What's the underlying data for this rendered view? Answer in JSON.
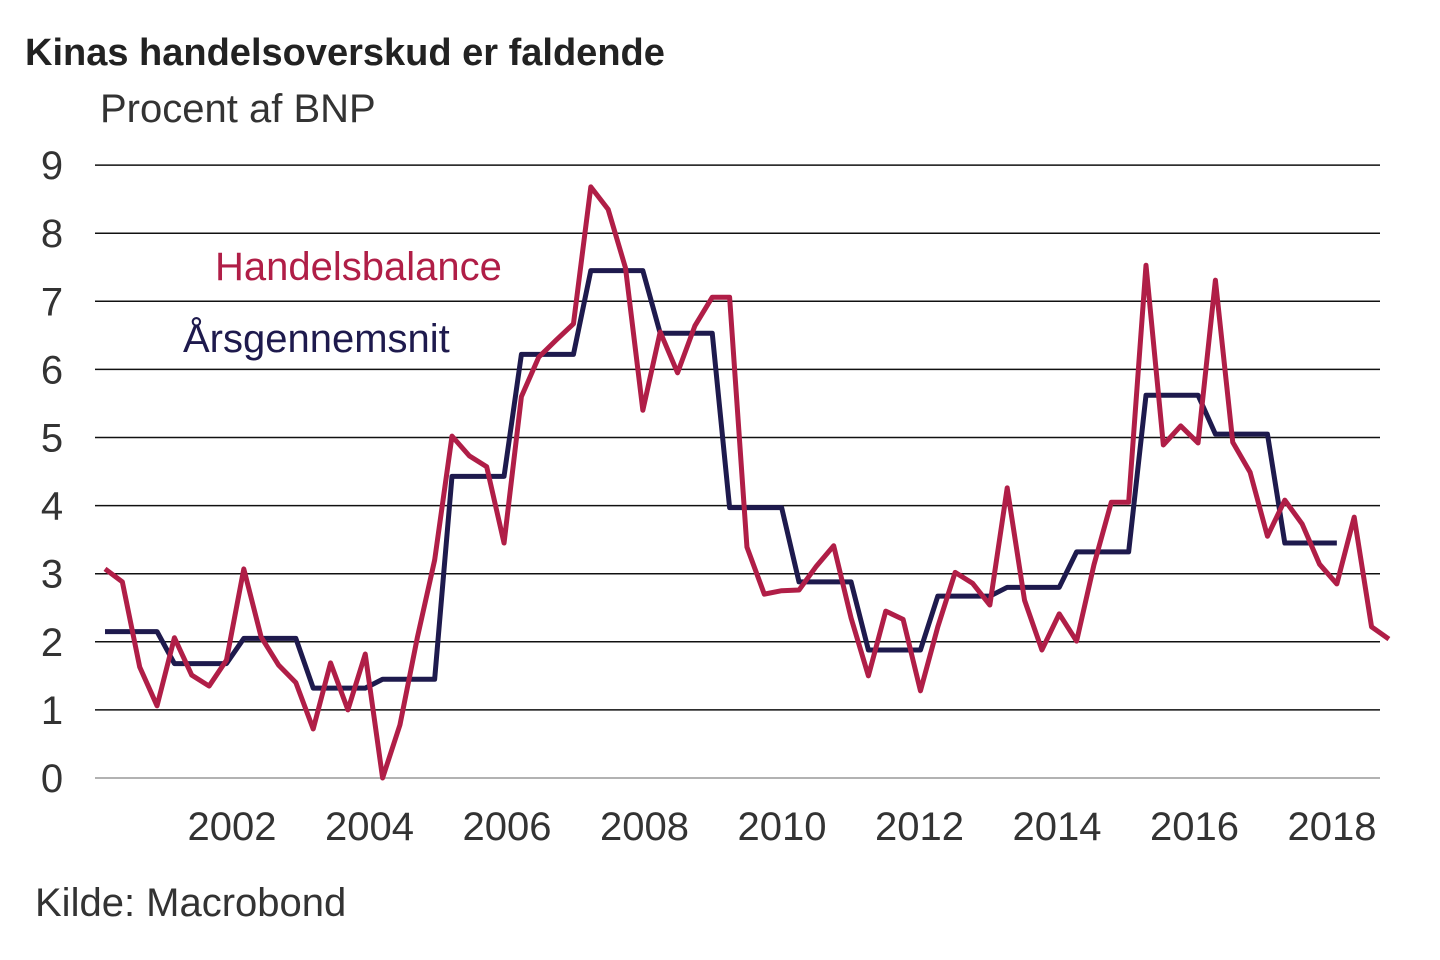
{
  "chart_data": {
    "type": "line",
    "title": "Kinas handelsoverskud er faldende",
    "ylabel": "Procent af BNP",
    "source": "Kilde: Macrobond",
    "ylim": [
      0,
      9
    ],
    "yticks": [
      "0",
      "1",
      "2",
      "3",
      "4",
      "5",
      "6",
      "7",
      "8",
      "9"
    ],
    "xticks": [
      "2002",
      "2004",
      "2006",
      "2008",
      "2010",
      "2012",
      "2014",
      "2016",
      "2018"
    ],
    "xtick_years": [
      2002,
      2004,
      2006,
      2008,
      2010,
      2012,
      2014,
      2016,
      2018
    ],
    "grid": true,
    "x_start": "2000Q1",
    "frequency": "quarterly",
    "series": [
      {
        "name": "Handelsbalance",
        "color": "#b01e47",
        "values": [
          3.07,
          2.88,
          1.63,
          1.06,
          2.06,
          1.51,
          1.35,
          1.73,
          3.07,
          2.07,
          1.66,
          1.4,
          0.72,
          1.69,
          1.0,
          1.82,
          0,
          0.78,
          2.06,
          3.2,
          5.02,
          4.73,
          4.57,
          3.45,
          5.6,
          6.18,
          6.43,
          6.67,
          8.68,
          8.35,
          7.49,
          5.4,
          6.55,
          5.95,
          6.64,
          7.06,
          7.06,
          3.39,
          2.7,
          2.75,
          2.76,
          3.11,
          3.41,
          2.35,
          1.5,
          2.45,
          2.33,
          1.28,
          2.22,
          3.02,
          2.86,
          2.54,
          4.26,
          2.61,
          1.88,
          2.41,
          2.01,
          3.13,
          4.05,
          4.05,
          7.53,
          4.89,
          5.17,
          4.92,
          7.31,
          4.93,
          4.49,
          3.55,
          4.08,
          3.73,
          3.14,
          2.85,
          3.83,
          2.22,
          2.04
        ]
      },
      {
        "name": "Årsgennemsnit",
        "color": "#1e1a4d",
        "years": [
          2000,
          2001,
          2002,
          2003,
          2004,
          2005,
          2006,
          2007,
          2008,
          2009,
          2010,
          2011,
          2012,
          2013,
          2014,
          2015,
          2016,
          2017
        ],
        "annual_values": [
          2.15,
          1.68,
          2.05,
          1.32,
          1.45,
          4.43,
          6.22,
          7.45,
          6.53,
          3.97,
          2.88,
          1.88,
          2.67,
          2.8,
          3.32,
          5.62,
          5.05,
          3.45
        ]
      }
    ]
  }
}
